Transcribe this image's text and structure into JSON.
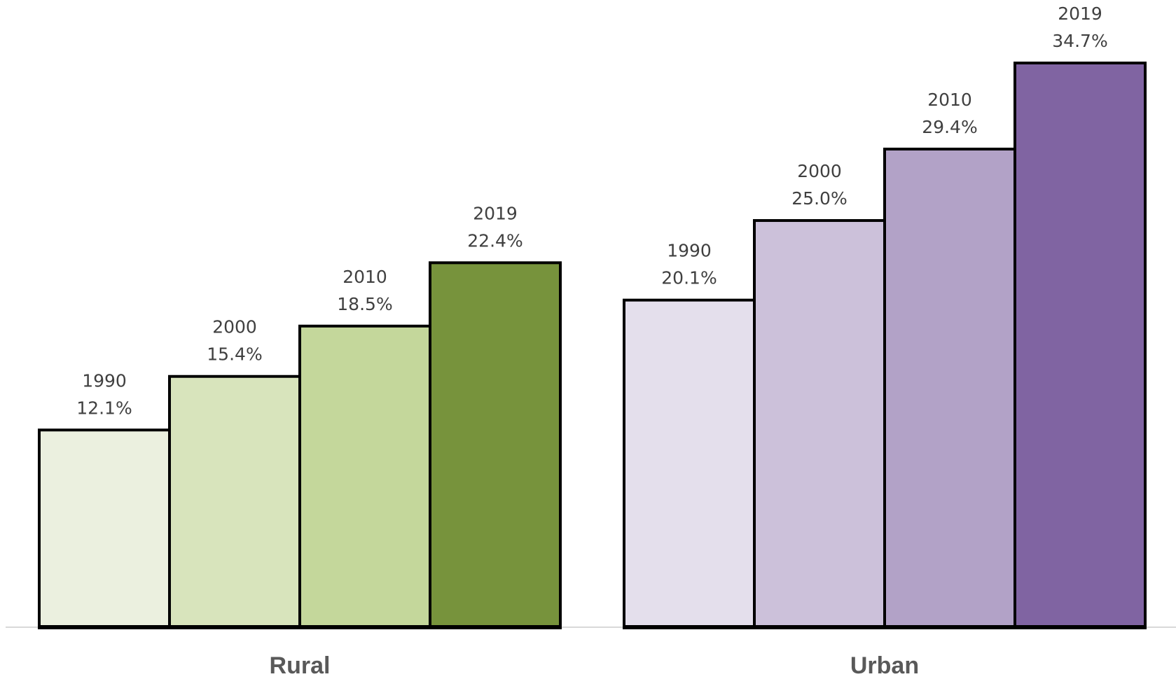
{
  "chart_data": {
    "type": "bar",
    "categories": [
      "Rural",
      "Urban"
    ],
    "series": [
      {
        "name": "1990",
        "colors": [
          "#ebf0df",
          "#e4dfec"
        ],
        "values": [
          12.1,
          20.1
        ],
        "value_labels": [
          "12.1%",
          "20.1%"
        ]
      },
      {
        "name": "2000",
        "colors": [
          "#d8e4bc",
          "#ccc1da"
        ],
        "values": [
          15.4,
          25.0
        ],
        "value_labels": [
          "15.4%",
          "25.0%"
        ]
      },
      {
        "name": "2010",
        "colors": [
          "#c4d79b",
          "#b2a2c7"
        ],
        "values": [
          18.5,
          29.4
        ],
        "value_labels": [
          "18.5%",
          "29.4%"
        ]
      },
      {
        "name": "2019",
        "colors": [
          "#77933c",
          "#8064a2"
        ],
        "values": [
          22.4,
          34.7
        ],
        "value_labels": [
          "22.4%",
          "34.7%"
        ]
      }
    ]
  }
}
